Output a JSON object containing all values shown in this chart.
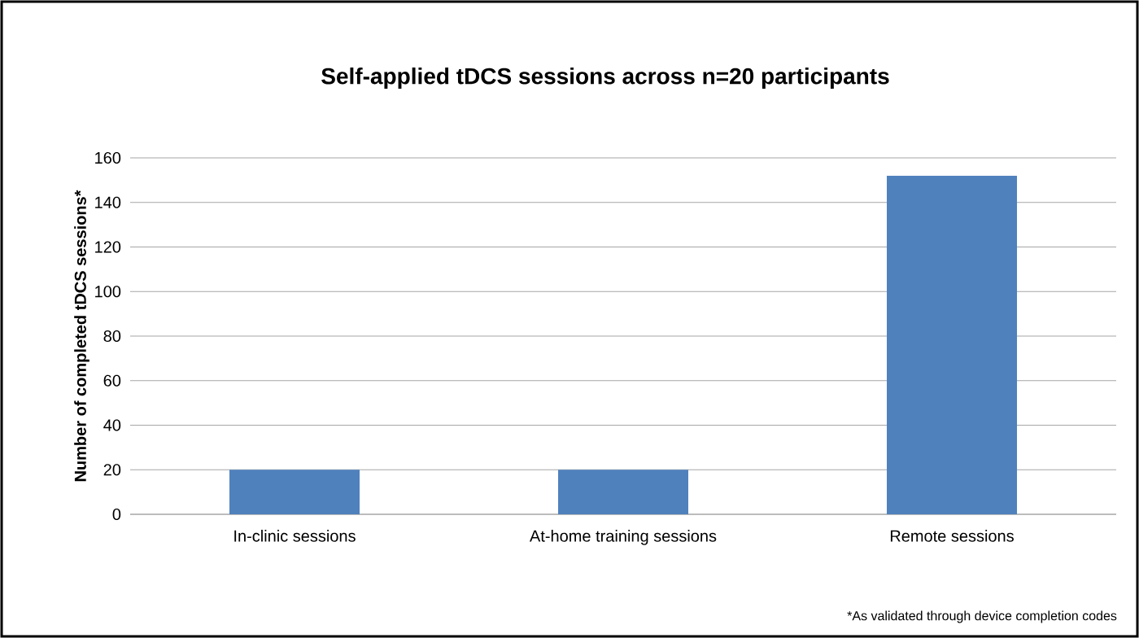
{
  "chart_data": {
    "type": "bar",
    "title": "Self-applied tDCS sessions across n=20 participants",
    "ylabel": "Number of completed  tDCS sessions*",
    "categories": [
      "In-clinic sessions",
      "At-home training sessions",
      "Remote sessions"
    ],
    "values": [
      20,
      20,
      152
    ],
    "color": "#4f81bd",
    "ylim": [
      0,
      160
    ],
    "yticks": [
      0,
      20,
      40,
      60,
      80,
      100,
      120,
      140,
      160
    ],
    "grid": "y",
    "annotations": [
      "*As validated through device completion codes"
    ]
  }
}
